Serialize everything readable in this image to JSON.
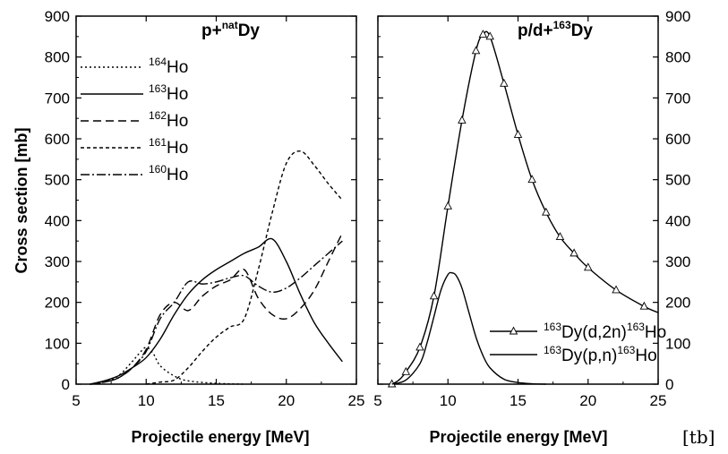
{
  "figure": {
    "tag": "[tb]"
  },
  "chart_data": [
    {
      "type": "line",
      "title": {
        "prefix": "p+",
        "sup": "nat",
        "suffix": "Dy"
      },
      "xlabel": "Projectile energy [MeV]",
      "ylabel": "Cross section [mb]",
      "xlim": [
        5,
        25
      ],
      "ylim": [
        0,
        900
      ],
      "xticks": [
        5,
        10,
        15,
        20,
        25
      ],
      "yticks": [
        0,
        100,
        200,
        300,
        400,
        500,
        600,
        700,
        800,
        900
      ],
      "legend_position": "top-left",
      "series": [
        {
          "name": "Ho",
          "mass": "164",
          "dash": "2,3",
          "x": [
            6,
            7,
            8,
            9,
            9.5,
            10,
            10.5,
            11,
            12,
            13,
            15,
            17
          ],
          "y": [
            0,
            5,
            20,
            55,
            75,
            90,
            75,
            45,
            20,
            8,
            2,
            0
          ]
        },
        {
          "name": "Ho",
          "mass": "163",
          "dash": "",
          "x": [
            6,
            7,
            8,
            9,
            10,
            11,
            12,
            13,
            14,
            15,
            16,
            17,
            18,
            19,
            20,
            21,
            22,
            23,
            24
          ],
          "y": [
            0,
            8,
            20,
            40,
            65,
            110,
            170,
            220,
            255,
            280,
            300,
            320,
            335,
            355,
            300,
            220,
            150,
            100,
            55
          ]
        },
        {
          "name": "Ho",
          "mass": "162",
          "dash": "9,5",
          "x": [
            6,
            7,
            8,
            9,
            10,
            11,
            12,
            13,
            14,
            15,
            16,
            17,
            18,
            19,
            20,
            21,
            22,
            23,
            24
          ],
          "y": [
            0,
            5,
            15,
            40,
            85,
            170,
            200,
            180,
            215,
            240,
            255,
            280,
            210,
            170,
            160,
            185,
            230,
            300,
            370
          ]
        },
        {
          "name": "Ho",
          "mass": "161",
          "dash": "4,3",
          "x": [
            10,
            11,
            12,
            13,
            14,
            15,
            16,
            17,
            18,
            19,
            20,
            21,
            22,
            23,
            24
          ],
          "y": [
            0,
            5,
            10,
            40,
            80,
            115,
            140,
            160,
            280,
            420,
            540,
            570,
            535,
            490,
            450
          ]
        },
        {
          "name": "Ho",
          "mass": "160",
          "dash": "10,3,2,3",
          "x": [
            6,
            7,
            8,
            9,
            10,
            11,
            12,
            13,
            14,
            15,
            16,
            17,
            18,
            19,
            20,
            21,
            22,
            23,
            24
          ],
          "y": [
            0,
            5,
            15,
            40,
            80,
            160,
            200,
            250,
            245,
            250,
            260,
            265,
            240,
            225,
            235,
            260,
            290,
            320,
            350
          ]
        }
      ]
    },
    {
      "type": "line",
      "title": {
        "prefix": "p/d+",
        "sup": "163",
        "suffix": "Dy"
      },
      "xlabel": "Projectile energy [MeV]",
      "ylabel": "",
      "xlim": [
        5,
        25
      ],
      "ylim": [
        0,
        900
      ],
      "xticks": [
        5,
        10,
        15,
        20,
        25
      ],
      "yticks": [
        0,
        100,
        200,
        300,
        400,
        500,
        600,
        700,
        800,
        900
      ],
      "y_axis_side": "right",
      "legend_position": "bottom-right",
      "series": [
        {
          "label": {
            "sup1": "163",
            "mid": "Dy(d,2n)",
            "sup2": "163",
            "end": "Ho"
          },
          "marker": "open-triangle",
          "x": [
            6,
            6.5,
            7,
            8,
            9,
            10,
            11,
            12,
            12.5,
            13,
            14,
            15,
            16,
            17,
            18,
            19,
            20,
            22,
            24,
            25
          ],
          "y": [
            0,
            10,
            30,
            90,
            215,
            435,
            645,
            815,
            855,
            850,
            735,
            610,
            500,
            420,
            360,
            320,
            285,
            230,
            190,
            175
          ],
          "marker_x": [
            6,
            7,
            8,
            9,
            10,
            11,
            12,
            12.5,
            13,
            14,
            15,
            16,
            17,
            18,
            19,
            20,
            22,
            24
          ],
          "marker_y": [
            0,
            30,
            90,
            215,
            435,
            645,
            815,
            855,
            850,
            735,
            610,
            500,
            420,
            360,
            320,
            285,
            230,
            190
          ]
        },
        {
          "label": {
            "sup1": "163",
            "mid": "Dy(p,n)",
            "sup2": "163",
            "end": "Ho"
          },
          "marker": "none",
          "x": [
            6,
            7,
            8,
            8.5,
            9,
            9.5,
            10,
            10.3,
            10.6,
            11,
            11.5,
            12,
            12.5,
            13,
            14,
            15,
            16,
            17
          ],
          "y": [
            0,
            10,
            50,
            100,
            165,
            230,
            268,
            272,
            265,
            235,
            175,
            115,
            70,
            40,
            12,
            4,
            1,
            0
          ]
        }
      ]
    }
  ]
}
